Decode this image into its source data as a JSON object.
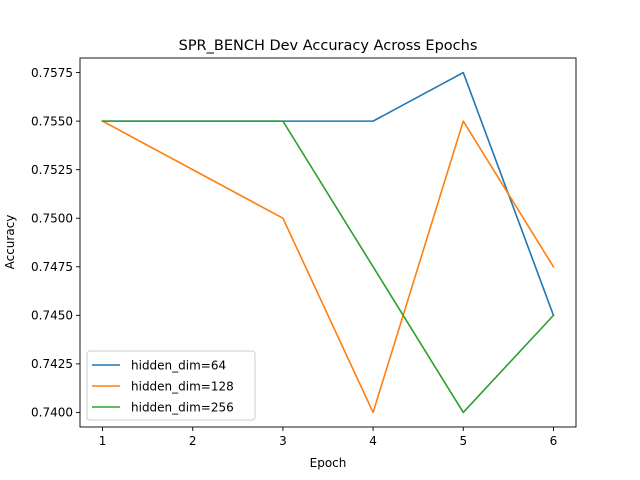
{
  "chart_data": {
    "type": "line",
    "title": "SPR_BENCH Dev Accuracy Across Epochs",
    "xlabel": "Epoch",
    "ylabel": "Accuracy",
    "x": [
      1,
      2,
      3,
      4,
      5,
      6
    ],
    "xticks": [
      "1",
      "2",
      "3",
      "4",
      "5",
      "6"
    ],
    "yticks": [
      "0.7400",
      "0.7425",
      "0.7450",
      "0.7475",
      "0.7500",
      "0.7525",
      "0.7550",
      "0.7575"
    ],
    "xlim": [
      0.75,
      6.25
    ],
    "ylim": [
      0.73925,
      0.75825
    ],
    "grid": false,
    "legend_position": "lower-left",
    "series": [
      {
        "name": "hidden_dim=64",
        "color": "#1f77b4",
        "x": [
          1,
          2,
          3,
          4,
          5,
          6
        ],
        "values": [
          0.755,
          0.755,
          0.755,
          0.755,
          0.7575,
          0.745
        ]
      },
      {
        "name": "hidden_dim=128",
        "color": "#ff7f0e",
        "x": [
          1,
          3,
          4,
          5,
          6
        ],
        "values": [
          0.755,
          0.75,
          0.74,
          0.755,
          0.7475
        ]
      },
      {
        "name": "hidden_dim=256",
        "color": "#2ca02c",
        "x": [
          1,
          2,
          3,
          5,
          6
        ],
        "values": [
          0.755,
          0.755,
          0.755,
          0.74,
          0.745
        ]
      }
    ]
  }
}
